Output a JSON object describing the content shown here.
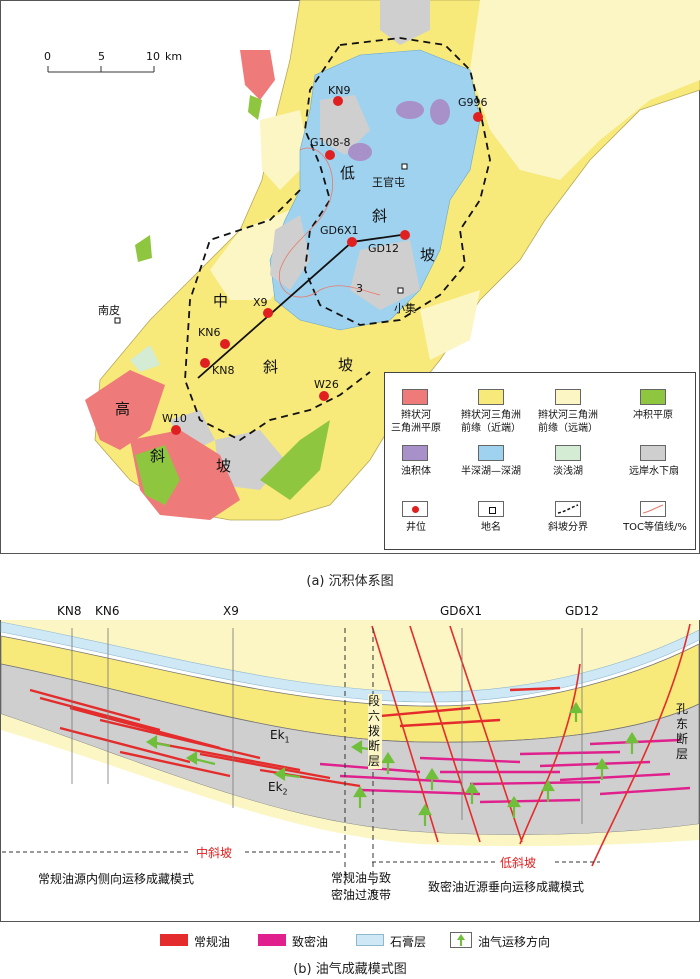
{
  "map": {
    "caption": "(a) 沉积体系图",
    "scale": {
      "t0": "0",
      "t5": "5",
      "t10": "10",
      "unit": "km"
    },
    "wells": [
      "KN9",
      "G996",
      "G108-8",
      "GD6X1",
      "GD12",
      "X9",
      "KN6",
      "KN8",
      "W26",
      "W10"
    ],
    "places": [
      "王官屯",
      "小集",
      "南皮"
    ],
    "zones": {
      "low": [
        "低",
        "斜",
        "坡"
      ],
      "mid": [
        "中",
        "斜",
        "坡"
      ],
      "high": [
        "高",
        "斜",
        "坡"
      ]
    },
    "toc_value": "3",
    "legend": [
      {
        "label1": "辫状河",
        "label2": "三角洲平原",
        "color": "#ef7a7a"
      },
      {
        "label1": "辫状河三角洲",
        "label2": "前缘（近端）",
        "color": "#f7e97a"
      },
      {
        "label1": "辫状河三角洲",
        "label2": "前缘（远端）",
        "color": "#fbf6c4"
      },
      {
        "label1": "冲积平原",
        "label2": "",
        "color": "#8ec63f"
      },
      {
        "label1": "浊积体",
        "label2": "",
        "color": "#a890c8"
      },
      {
        "label1": "半深湖—深湖",
        "label2": "",
        "color": "#9fd2ef"
      },
      {
        "label1": "淡浅湖",
        "label2": "",
        "color": "#d3ecd3"
      },
      {
        "label1": "远岸水下扇",
        "label2": "",
        "color": "#cfcfcf"
      },
      {
        "label1": "井位",
        "label2": ""
      },
      {
        "label1": "地名",
        "label2": ""
      },
      {
        "label1": "斜坡分界",
        "label2": ""
      },
      {
        "label1": "TOC等值线/%",
        "label2": ""
      }
    ]
  },
  "section": {
    "caption": "(b) 油气成藏模式图",
    "wells": [
      "KN8",
      "KN6",
      "X9",
      "GD6X1",
      "GD12"
    ],
    "ek1": "Ek",
    "ek1_sub": "1",
    "ek2": "Ek",
    "ek2_sub": "2",
    "fault1": "段六拨断层",
    "fault2": "孔东断层",
    "mid_slope": "中斜坡",
    "low_slope": "低斜坡",
    "mode1": "常规油源内侧向运移成藏模式",
    "mode2_l1": "常规油与致",
    "mode2_l2": "密油过渡带",
    "mode3": "致密油近源垂向运移成藏模式",
    "legend": [
      {
        "label": "常规油",
        "color": "#e42c2c"
      },
      {
        "label": "致密油",
        "color": "#e0208c"
      },
      {
        "label": "石膏层",
        "color": "#cfe8f5"
      },
      {
        "label": "油气运移方向",
        "color": "#6fbf3a"
      }
    ]
  }
}
